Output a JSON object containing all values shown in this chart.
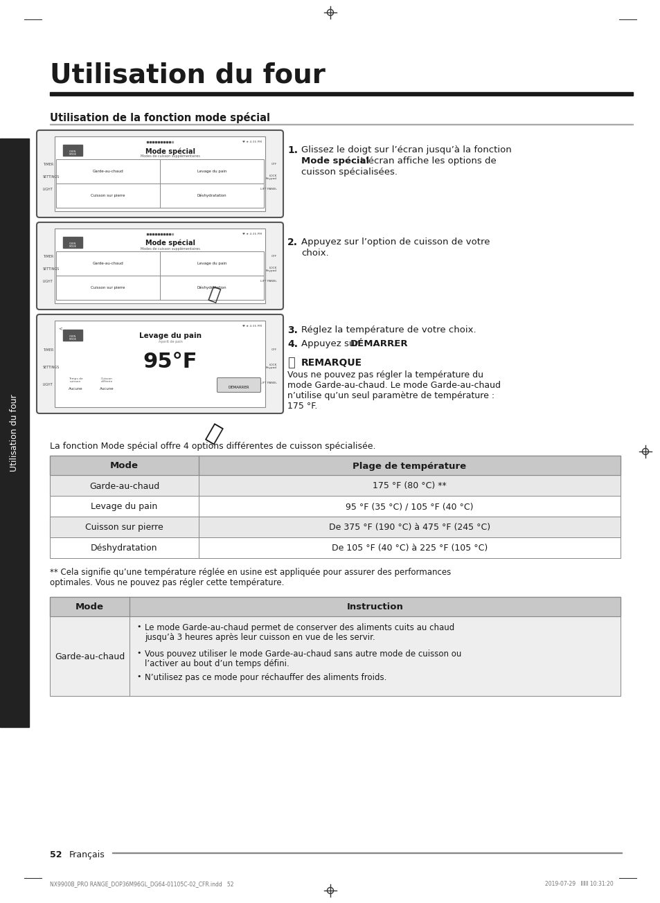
{
  "page_bg": "#ffffff",
  "title": "Utilisation du four",
  "section_title": "Utilisation de la fonction mode spécial",
  "step1_num": "1.",
  "step2_num": "2.",
  "step3_num": "3.",
  "step4_num": "4.",
  "step3_text": "Réglez la température de votre choix.",
  "remark_title": "REMARQUE",
  "remark_lines": [
    "Vous ne pouvez pas régler la température du",
    "mode Garde-au-chaud. Le mode Garde-au-chaud",
    "n’utilise qu’un seul paramètre de température :",
    "175 °F."
  ],
  "summary_text": "La fonction Mode spécial offre 4 options différentes de cuisson spécialisée.",
  "table1_headers": [
    "Mode",
    "Plage de température"
  ],
  "table1_rows": [
    [
      "Garde-au-chaud",
      "175 °F (80 °C) **"
    ],
    [
      "Levage du pain",
      "95 °F (35 °C) / 105 °F (40 °C)"
    ],
    [
      "Cuisson sur pierre",
      "De 375 °F (190 °C) à 475 °F (245 °C)"
    ],
    [
      "Déshydratation",
      "De 105 °F (40 °C) à 225 °F (105 °C)"
    ]
  ],
  "footnote_lines": [
    "** Cela signifie qu’une température réglée en usine est appliquée pour assurer des performances",
    "optimales. Vous ne pouvez pas régler cette température."
  ],
  "table2_headers": [
    "Mode",
    "Instruction"
  ],
  "table2_row1_col1": "Garde-au-chaud",
  "table2_row1_bullets": [
    [
      "Le mode Garde-au-chaud permet de conserver des aliments cuits au chaud",
      "jusqu’à 3 heures après leur cuisson en vue de les servir."
    ],
    [
      "Vous pouvez utiliser le mode Garde-au-chaud sans autre mode de cuisson ou",
      "l’activer au bout d’un temps défini."
    ],
    [
      "N’utilisez pas ce mode pour réchauffer des aliments froids."
    ]
  ],
  "page_num": "52",
  "page_lang": "Français",
  "sidebar_text": "Utilisation du four",
  "header_file": "NX9900B_PRO RANGE_DOP36M96GL_DG64-01105C-02_CFR.indd   52",
  "footer_date": "2019-07-29   ⅡⅡⅡ 10:31:20",
  "table_header_bg": "#c8c8c8",
  "table_row_bg_even": "#e8e8e8",
  "table_row_bg_odd": "#ffffff",
  "table_border": "#888888",
  "sidebar_bg": "#222222",
  "sidebar_text_color": "#ffffff",
  "text_color": "#1a1a1a",
  "screen_border": "#555555",
  "screen_bg": "#f5f5f5",
  "screen_inner_bg": "#ffffff"
}
